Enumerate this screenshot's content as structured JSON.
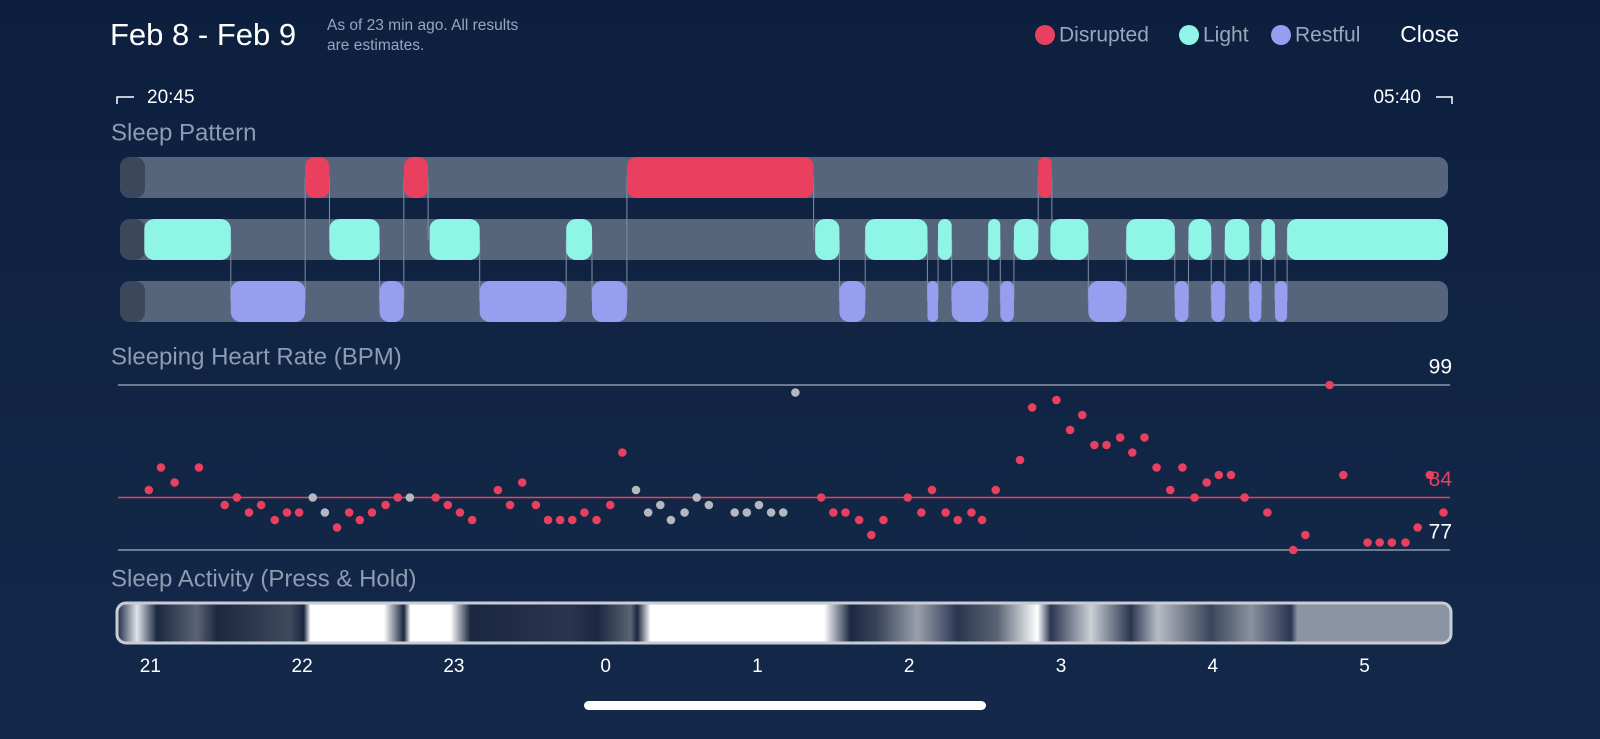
{
  "header": {
    "title": "Feb 8 - Feb 9",
    "note_line1": "As of 23 min ago. All results",
    "note_line2": "are estimates.",
    "close": "Close"
  },
  "legend": [
    {
      "name": "Disrupted",
      "color": "#e8405e"
    },
    {
      "name": "Light",
      "color": "#8ff5e6"
    },
    {
      "name": "Restful",
      "color": "#969ef0"
    }
  ],
  "time_range": {
    "start": "20:45",
    "end": "05:40"
  },
  "xlim": [
    20.8,
    29.55
  ],
  "xticks": [
    21,
    22,
    23,
    {
      "value": 24,
      "label": "0"
    },
    {
      "value": 25,
      "label": "1"
    },
    {
      "value": 26,
      "label": "2"
    },
    {
      "value": 27,
      "label": "3"
    },
    {
      "value": 28,
      "label": "4"
    },
    {
      "value": 29,
      "label": "5"
    }
  ],
  "sleep_pattern": {
    "title": "Sleep Pattern",
    "rows": [
      {
        "stage": "Disrupted",
        "segments": [
          [
            22.02,
            22.18
          ],
          [
            22.67,
            22.83
          ],
          [
            24.14,
            25.37
          ],
          [
            26.85,
            26.94
          ]
        ]
      },
      {
        "stage": "Light",
        "segments": [
          [
            20.96,
            21.53
          ],
          [
            22.18,
            22.51
          ],
          [
            22.84,
            23.17
          ],
          [
            23.74,
            23.91
          ],
          [
            25.38,
            25.54
          ],
          [
            25.71,
            26.12
          ],
          [
            26.19,
            26.28
          ],
          [
            26.52,
            26.6
          ],
          [
            26.69,
            26.85
          ],
          [
            26.93,
            27.18
          ],
          [
            27.43,
            27.75
          ],
          [
            27.84,
            27.99
          ],
          [
            28.08,
            28.24
          ],
          [
            28.32,
            28.41
          ],
          [
            28.49,
            29.55
          ]
        ]
      },
      {
        "stage": "Restful",
        "segments": [
          [
            21.53,
            22.02
          ],
          [
            22.51,
            22.67
          ],
          [
            23.17,
            23.74
          ],
          [
            23.91,
            24.14
          ],
          [
            25.54,
            25.71
          ],
          [
            26.12,
            26.19
          ],
          [
            26.28,
            26.52
          ],
          [
            26.6,
            26.69
          ],
          [
            27.18,
            27.43
          ],
          [
            27.75,
            27.84
          ],
          [
            27.99,
            28.08
          ],
          [
            28.24,
            28.32
          ],
          [
            28.41,
            28.49
          ]
        ]
      }
    ]
  },
  "heart_rate": {
    "title": "Sleeping Heart Rate (BPM)",
    "ylim": [
      76,
      100
    ],
    "reference_lines": [
      {
        "value": 99,
        "color": "#8d96a8"
      },
      {
        "value": 84,
        "color": "#e8405e"
      },
      {
        "value": 77,
        "color": "#8d96a8"
      }
    ],
    "points": {
      "color": "#e8405e",
      "x": [
        20.99,
        21.07,
        21.16,
        21.32,
        21.49,
        21.57,
        21.65,
        21.73,
        21.82,
        21.9,
        21.98,
        22.23,
        22.31,
        22.38,
        22.46,
        22.55,
        22.63,
        22.88,
        22.96,
        23.04,
        23.12,
        23.29,
        23.37,
        23.45,
        23.54,
        23.62,
        23.7,
        23.78,
        23.86,
        23.94,
        24.03,
        24.11,
        25.42,
        25.5,
        25.58,
        25.67,
        25.75,
        25.83,
        25.99,
        26.08,
        26.15,
        26.24,
        26.32,
        26.41,
        26.48,
        26.57,
        26.73,
        26.81,
        26.97,
        27.06,
        27.14,
        27.22,
        27.3,
        27.39,
        27.47,
        27.55,
        27.63,
        27.72,
        27.8,
        27.88,
        27.96,
        28.04,
        28.12,
        28.21,
        28.36,
        28.53,
        28.61,
        28.77,
        28.86,
        29.02,
        29.1,
        29.18,
        29.27,
        29.35,
        29.43,
        29.52
      ],
      "y": [
        85,
        88,
        86,
        88,
        83,
        84,
        82,
        83,
        81,
        82,
        82,
        80,
        82,
        81,
        82,
        83,
        84,
        84,
        83,
        82,
        81,
        85,
        83,
        86,
        83,
        81,
        81,
        81,
        82,
        81,
        83,
        90,
        84,
        82,
        82,
        81,
        79,
        81,
        84,
        82,
        85,
        82,
        81,
        82,
        81,
        85,
        89,
        96,
        97,
        93,
        95,
        91,
        91,
        92,
        90,
        92,
        88,
        85,
        88,
        84,
        86,
        87,
        87,
        84,
        82,
        77,
        79,
        99,
        87,
        78,
        78,
        78,
        78,
        80,
        87,
        82
      ]
    },
    "disrupted_points": {
      "color": "#b4b8bf",
      "x": [
        22.07,
        22.15,
        22.71,
        24.2,
        24.28,
        24.36,
        24.43,
        24.52,
        24.6,
        24.68,
        24.85,
        24.93,
        25.01,
        25.09,
        25.17,
        25.25
      ],
      "y": [
        84,
        82,
        84,
        85,
        82,
        83,
        81,
        82,
        84,
        83,
        82,
        82,
        83,
        82,
        82,
        98
      ]
    }
  },
  "activity": {
    "title": "Sleep Activity (Press & Hold)"
  }
}
